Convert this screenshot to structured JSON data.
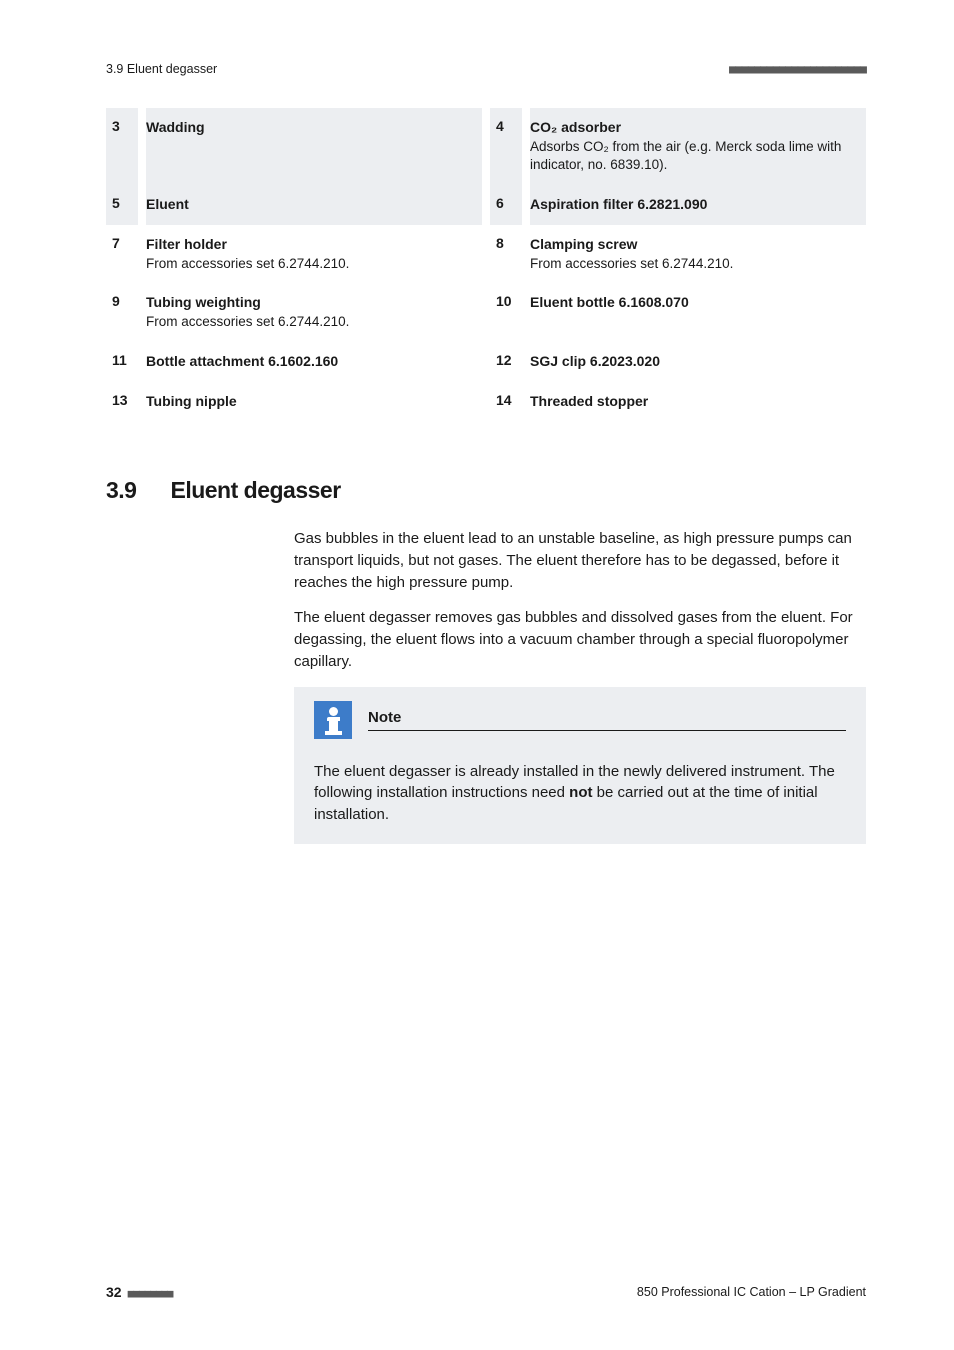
{
  "header": {
    "left": "3.9 Eluent degasser",
    "dashes": "■■■■■■■■■■■■■■■■■■■■■■"
  },
  "parts": [
    {
      "n": "3",
      "title": "Wadding",
      "sub": ""
    },
    {
      "n": "4",
      "title": "CO₂ adsorber",
      "sub": "Adsorbs CO₂ from the air (e.g. Merck soda lime with indicator, no. 6839.10)."
    },
    {
      "n": "5",
      "title": "Eluent",
      "sub": ""
    },
    {
      "n": "6",
      "title": "Aspiration filter 6.2821.090",
      "sub": ""
    },
    {
      "n": "7",
      "title": "Filter holder",
      "sub": "From accessories set 6.2744.210."
    },
    {
      "n": "8",
      "title": "Clamping screw",
      "sub": "From accessories set 6.2744.210."
    },
    {
      "n": "9",
      "title": "Tubing weighting",
      "sub": "From accessories set 6.2744.210."
    },
    {
      "n": "10",
      "title": "Eluent bottle 6.1608.070",
      "sub": ""
    },
    {
      "n": "11",
      "title": "Bottle attachment 6.1602.160",
      "sub": ""
    },
    {
      "n": "12",
      "title": "SGJ clip 6.2023.020",
      "sub": ""
    },
    {
      "n": "13",
      "title": "Tubing nipple",
      "sub": ""
    },
    {
      "n": "14",
      "title": "Threaded stopper",
      "sub": ""
    }
  ],
  "section": {
    "num": "3.9",
    "title": "Eluent degasser"
  },
  "body": {
    "p1": "Gas bubbles in the eluent lead to an unstable baseline, as high pressure pumps can transport liquids, but not gases. The eluent therefore has to be degassed, before it reaches the high pressure pump.",
    "p2": "The eluent degasser removes gas bubbles and dissolved gases from the eluent. For degassing, the eluent flows into a vacuum chamber through a special fluoropolymer capillary."
  },
  "note": {
    "title": "Note",
    "body_before": "The eluent degasser is already installed in the newly delivered instrument. The following installation instructions need ",
    "body_bold": "not",
    "body_after": " be carried out at the time of initial installation."
  },
  "footer": {
    "page": "32",
    "dashes": "■■■■■■■■",
    "right": "850 Professional IC Cation – LP Gradient"
  },
  "colors": {
    "shade": "#eceef1",
    "icon_bg": "#3d7cc9",
    "text": "#1a1a1a",
    "dash": "#5a5a5a"
  }
}
